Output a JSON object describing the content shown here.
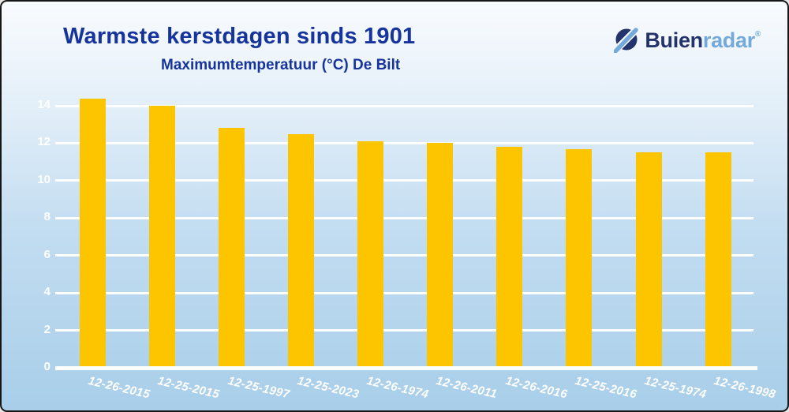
{
  "header": {
    "title": "Warmste kerstdagen sinds 1901",
    "subtitle": "Maximumtemperatuur (°C) De Bilt"
  },
  "logo": {
    "part1": "Buien",
    "part2": "radar",
    "registered": "®",
    "icon": "buienradar-radar-beam-icon",
    "color_navy": "#24336b",
    "color_light": "#74a9dc"
  },
  "chart_data": {
    "type": "bar",
    "title": "Warmste kerstdagen sinds 1901",
    "subtitle": "Maximumtemperatuur (°C) De Bilt",
    "categories": [
      "12-26-2015",
      "12-25-2015",
      "12-25-1997",
      "12-25-2023",
      "12-26-1974",
      "12-26-2011",
      "12-26-2016",
      "12-25-2016",
      "12-25-1974",
      "12-26-1998"
    ],
    "values": [
      14.4,
      14.0,
      12.8,
      12.5,
      12.1,
      12.0,
      11.8,
      11.7,
      11.5,
      11.5
    ],
    "xlabel": "",
    "ylabel": "",
    "ylim": [
      0,
      14
    ],
    "yticks": [
      0,
      2,
      4,
      6,
      8,
      10,
      12,
      14
    ],
    "grid": true,
    "legend": "none",
    "bar_color": "#fdc500",
    "grid_color": "#ffffff",
    "tick_label_color": "#ffffff",
    "title_color": "#16349b"
  }
}
